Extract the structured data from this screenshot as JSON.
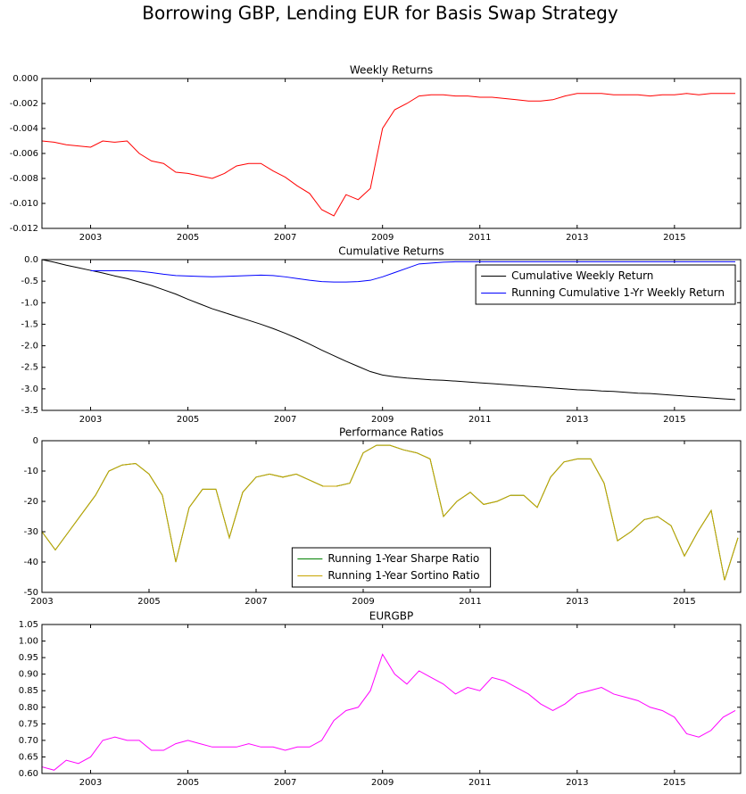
{
  "title": "Borrowing GBP, Lending EUR for Basis Swap Strategy",
  "chart_data": [
    {
      "type": "line",
      "title": "Weekly Returns",
      "x": [
        2002,
        2002.25,
        2002.5,
        2002.75,
        2003,
        2003.25,
        2003.5,
        2003.75,
        2004,
        2004.25,
        2004.5,
        2004.75,
        2005,
        2005.25,
        2005.5,
        2005.75,
        2006,
        2006.25,
        2006.5,
        2006.75,
        2007,
        2007.25,
        2007.5,
        2007.75,
        2008,
        2008.25,
        2008.5,
        2008.75,
        2009,
        2009.25,
        2009.5,
        2009.75,
        2010,
        2010.25,
        2010.5,
        2010.75,
        2011,
        2011.25,
        2011.5,
        2011.75,
        2012,
        2012.25,
        2012.5,
        2012.75,
        2013,
        2013.25,
        2013.5,
        2013.75,
        2014,
        2014.25,
        2014.5,
        2014.75,
        2015,
        2015.25,
        2015.5,
        2015.75,
        2016,
        2016.25
      ],
      "series": [
        {
          "name": "Weekly Returns",
          "color": "#ff0000",
          "values": [
            -0.005,
            -0.0051,
            -0.0053,
            -0.0054,
            -0.0055,
            -0.005,
            -0.0051,
            -0.005,
            -0.006,
            -0.0066,
            -0.0068,
            -0.0075,
            -0.0076,
            -0.0078,
            -0.008,
            -0.0076,
            -0.007,
            -0.0068,
            -0.0068,
            -0.0074,
            -0.0079,
            -0.0086,
            -0.0092,
            -0.0105,
            -0.011,
            -0.0093,
            -0.0097,
            -0.0088,
            -0.004,
            -0.0025,
            -0.002,
            -0.0014,
            -0.0013,
            -0.0013,
            -0.0014,
            -0.0014,
            -0.0015,
            -0.0015,
            -0.0016,
            -0.0017,
            -0.0018,
            -0.0018,
            -0.0017,
            -0.0014,
            -0.0012,
            -0.0012,
            -0.0012,
            -0.0013,
            -0.0013,
            -0.0013,
            -0.0014,
            -0.0013,
            -0.0013,
            -0.0012,
            -0.0013,
            -0.0012,
            -0.0012,
            -0.0012
          ]
        }
      ],
      "xlim": [
        2002,
        2016.36
      ],
      "xticks": [
        2003,
        2005,
        2007,
        2009,
        2011,
        2013,
        2015
      ],
      "ylim": [
        -0.012,
        0
      ],
      "yticks": [
        {
          "value": -0.012,
          "label": "-0.012"
        },
        {
          "value": -0.01,
          "label": "-0.010"
        },
        {
          "value": -0.008,
          "label": "-0.008"
        },
        {
          "value": -0.006,
          "label": "-0.006"
        },
        {
          "value": -0.004,
          "label": "-0.004"
        },
        {
          "value": -0.002,
          "label": "-0.002"
        },
        {
          "value": 0,
          "label": "0.000"
        }
      ],
      "grid": false
    },
    {
      "type": "line",
      "title": "Cumulative Returns",
      "x": [
        2002,
        2002.25,
        2002.5,
        2002.75,
        2003,
        2003.25,
        2003.5,
        2003.75,
        2004,
        2004.25,
        2004.5,
        2004.75,
        2005,
        2005.25,
        2005.5,
        2005.75,
        2006,
        2006.25,
        2006.5,
        2006.75,
        2007,
        2007.25,
        2007.5,
        2007.75,
        2008,
        2008.25,
        2008.5,
        2008.75,
        2009,
        2009.25,
        2009.5,
        2009.75,
        2010,
        2010.25,
        2010.5,
        2010.75,
        2011,
        2011.25,
        2011.5,
        2011.75,
        2012,
        2012.25,
        2012.5,
        2012.75,
        2013,
        2013.25,
        2013.5,
        2013.75,
        2014,
        2014.25,
        2014.5,
        2014.75,
        2015,
        2015.25,
        2015.5,
        2015.75,
        2016,
        2016.25
      ],
      "series": [
        {
          "name": "Cumulative Weekly Return",
          "color": "#000000",
          "values": [
            0,
            -0.06,
            -0.13,
            -0.19,
            -0.25,
            -0.31,
            -0.38,
            -0.44,
            -0.52,
            -0.6,
            -0.7,
            -0.8,
            -0.92,
            -1.03,
            -1.14,
            -1.23,
            -1.32,
            -1.41,
            -1.5,
            -1.6,
            -1.71,
            -1.83,
            -1.96,
            -2.1,
            -2.23,
            -2.36,
            -2.48,
            -2.6,
            -2.68,
            -2.72,
            -2.75,
            -2.77,
            -2.79,
            -2.8,
            -2.82,
            -2.84,
            -2.86,
            -2.88,
            -2.9,
            -2.92,
            -2.94,
            -2.96,
            -2.98,
            -3.0,
            -3.02,
            -3.03,
            -3.05,
            -3.06,
            -3.08,
            -3.1,
            -3.11,
            -3.13,
            -3.15,
            -3.17,
            -3.19,
            -3.21,
            -3.23,
            -3.25
          ]
        },
        {
          "name": "Running Cumulative 1-Yr Weekly Return",
          "color": "#0000ff",
          "values": [
            null,
            null,
            null,
            null,
            -0.26,
            -0.26,
            -0.26,
            -0.26,
            -0.27,
            -0.3,
            -0.34,
            -0.37,
            -0.38,
            -0.39,
            -0.4,
            -0.39,
            -0.38,
            -0.37,
            -0.36,
            -0.37,
            -0.4,
            -0.44,
            -0.48,
            -0.51,
            -0.52,
            -0.52,
            -0.51,
            -0.48,
            -0.4,
            -0.3,
            -0.2,
            -0.1,
            -0.08,
            -0.06,
            -0.05,
            -0.05,
            -0.05,
            -0.05,
            -0.05,
            -0.05,
            -0.05,
            -0.05,
            -0.05,
            -0.05,
            -0.05,
            -0.05,
            -0.05,
            -0.05,
            -0.05,
            -0.05,
            -0.05,
            -0.05,
            -0.05,
            -0.05,
            -0.05,
            -0.05,
            -0.05,
            -0.05
          ]
        }
      ],
      "legend": "upper right",
      "xlim": [
        2002,
        2016.36
      ],
      "xticks": [
        2003,
        2005,
        2007,
        2009,
        2011,
        2013,
        2015
      ],
      "ylim": [
        -3.5,
        0
      ],
      "yticks": [
        -3.5,
        {
          "value": -3,
          "label": "-3.0"
        },
        -2.5,
        {
          "value": -2,
          "label": "-2.0"
        },
        -1.5,
        {
          "value": -1,
          "label": "-1.0"
        },
        -0.5,
        {
          "value": 0,
          "label": "0.0"
        }
      ],
      "grid": false
    },
    {
      "type": "line",
      "title": "Performance Ratios",
      "x": [
        2003,
        2003.25,
        2003.5,
        2003.75,
        2004,
        2004.25,
        2004.5,
        2004.75,
        2005,
        2005.25,
        2005.5,
        2005.75,
        2006,
        2006.25,
        2006.5,
        2006.75,
        2007,
        2007.25,
        2007.5,
        2007.75,
        2008,
        2008.25,
        2008.5,
        2008.75,
        2009,
        2009.25,
        2009.5,
        2009.75,
        2010,
        2010.25,
        2010.5,
        2010.75,
        2011,
        2011.25,
        2011.5,
        2011.75,
        2012,
        2012.25,
        2012.5,
        2012.75,
        2013,
        2013.25,
        2013.5,
        2013.75,
        2014,
        2014.25,
        2014.5,
        2014.75,
        2015,
        2015.25,
        2015.5,
        2015.75,
        2016
      ],
      "series": [
        {
          "name": "Running 1-Year Sharpe Ratio",
          "color": "#008000",
          "values": [
            -30,
            -36,
            -30,
            -24,
            -18,
            -10,
            -8,
            -7.5,
            -11,
            -18,
            -40,
            -22,
            -16,
            -16,
            -32,
            -17,
            -12,
            -11,
            -12,
            -11,
            -13,
            -15,
            -15,
            -14,
            -4,
            -1.5,
            -1.5,
            -3,
            -4,
            -6,
            -25,
            -20,
            -17,
            -21,
            -20,
            -18,
            -18,
            -22,
            -12,
            -7,
            -6,
            -6,
            -14,
            -33,
            -30,
            -26,
            -25,
            -28,
            -38,
            -30,
            -23,
            -46,
            -32
          ]
        },
        {
          "name": "Running 1-Year Sortino Ratio",
          "color": "#c8a400",
          "values": [
            -30,
            -36,
            -30,
            -24,
            -18,
            -10,
            -8,
            -7.5,
            -11,
            -18,
            -40,
            -22,
            -16,
            -16,
            -32,
            -17,
            -12,
            -11,
            -12,
            -11,
            -13,
            -15,
            -15,
            -14,
            -4,
            -1.5,
            -1.5,
            -3,
            -4,
            -6,
            -25,
            -20,
            -17,
            -21,
            -20,
            -18,
            -18,
            -22,
            -12,
            -7,
            -6,
            -6,
            -14,
            -33,
            -30,
            -26,
            -25,
            -28,
            -38,
            -30,
            -23,
            -46,
            -32
          ]
        }
      ],
      "legend": "lower center",
      "xlim": [
        2003,
        2016.05
      ],
      "xticks": [
        2003,
        2005,
        2007,
        2009,
        2011,
        2013,
        2015
      ],
      "ylim": [
        -50,
        0
      ],
      "yticks": [
        -50,
        -40,
        -30,
        -20,
        -10,
        0
      ],
      "grid": false
    },
    {
      "type": "line",
      "title": "EURGBP",
      "x": [
        2002,
        2002.25,
        2002.5,
        2002.75,
        2003,
        2003.25,
        2003.5,
        2003.75,
        2004,
        2004.25,
        2004.5,
        2004.75,
        2005,
        2005.25,
        2005.5,
        2005.75,
        2006,
        2006.25,
        2006.5,
        2006.75,
        2007,
        2007.25,
        2007.5,
        2007.75,
        2008,
        2008.25,
        2008.5,
        2008.75,
        2009,
        2009.25,
        2009.5,
        2009.75,
        2010,
        2010.25,
        2010.5,
        2010.75,
        2011,
        2011.25,
        2011.5,
        2011.75,
        2012,
        2012.25,
        2012.5,
        2012.75,
        2013,
        2013.25,
        2013.5,
        2013.75,
        2014,
        2014.25,
        2014.5,
        2014.75,
        2015,
        2015.25,
        2015.5,
        2015.75,
        2016,
        2016.25
      ],
      "series": [
        {
          "name": "EURGBP",
          "color": "#ff00ff",
          "values": [
            0.62,
            0.61,
            0.64,
            0.63,
            0.65,
            0.7,
            0.71,
            0.7,
            0.7,
            0.67,
            0.67,
            0.69,
            0.7,
            0.69,
            0.68,
            0.68,
            0.68,
            0.69,
            0.68,
            0.68,
            0.67,
            0.68,
            0.68,
            0.7,
            0.76,
            0.79,
            0.8,
            0.85,
            0.96,
            0.9,
            0.87,
            0.91,
            0.89,
            0.87,
            0.84,
            0.86,
            0.85,
            0.89,
            0.88,
            0.86,
            0.84,
            0.81,
            0.79,
            0.81,
            0.84,
            0.85,
            0.86,
            0.84,
            0.83,
            0.82,
            0.8,
            0.79,
            0.77,
            0.72,
            0.71,
            0.73,
            0.77,
            0.79
          ]
        }
      ],
      "xlim": [
        2002,
        2016.36
      ],
      "xticks": [
        2003,
        2005,
        2007,
        2009,
        2011,
        2013,
        2015
      ],
      "ylim": [
        0.6,
        1.05
      ],
      "yticks": [
        {
          "value": 0.6,
          "label": "0.60"
        },
        0.65,
        {
          "value": 0.7,
          "label": "0.70"
        },
        0.75,
        {
          "value": 0.8,
          "label": "0.80"
        },
        0.85,
        {
          "value": 0.9,
          "label": "0.90"
        },
        0.95,
        {
          "value": 1.0,
          "label": "1.00"
        },
        1.05
      ],
      "grid": false
    }
  ]
}
